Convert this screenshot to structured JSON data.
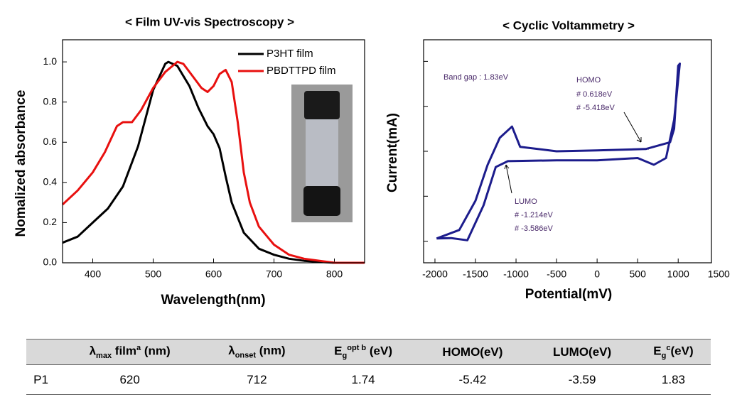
{
  "chart_data": [
    {
      "type": "line",
      "title": "< Film UV-vis Spectroscopy >",
      "x_label": "Wavelength(nm)",
      "y_label": "Nomalized absorbance",
      "xlim": [
        350,
        850
      ],
      "xticks": [
        400,
        500,
        600,
        700,
        800
      ],
      "ylim": [
        0,
        1.11
      ],
      "yticks": [
        {
          "value": 0,
          "label": "0.0"
        },
        0.2,
        0.4,
        0.6,
        0.8,
        {
          "value": 1,
          "label": "1.0"
        }
      ],
      "legend": "upper right",
      "series": [
        {
          "name": "P3HT film",
          "color": "#000000",
          "x": [
            350,
            375,
            400,
            425,
            450,
            475,
            500,
            520,
            525,
            540,
            560,
            575,
            590,
            600,
            610,
            620,
            630,
            650,
            675,
            700,
            725,
            750,
            800,
            850
          ],
          "values": [
            0.1,
            0.13,
            0.2,
            0.27,
            0.38,
            0.58,
            0.86,
            0.99,
            1.0,
            0.98,
            0.88,
            0.77,
            0.68,
            0.64,
            0.57,
            0.43,
            0.3,
            0.15,
            0.07,
            0.04,
            0.02,
            0.01,
            0.0,
            0.0
          ]
        },
        {
          "name": "PBDTTPD film",
          "color": "#e8100f",
          "x": [
            350,
            375,
            400,
            420,
            440,
            450,
            465,
            480,
            500,
            520,
            540,
            550,
            565,
            580,
            590,
            600,
            610,
            620,
            630,
            640,
            650,
            660,
            675,
            700,
            725,
            750,
            800,
            850
          ],
          "values": [
            0.29,
            0.36,
            0.45,
            0.55,
            0.68,
            0.7,
            0.7,
            0.76,
            0.87,
            0.95,
            1.0,
            0.99,
            0.93,
            0.87,
            0.85,
            0.88,
            0.94,
            0.96,
            0.9,
            0.7,
            0.45,
            0.3,
            0.18,
            0.09,
            0.04,
            0.02,
            0.0,
            0.0
          ]
        }
      ]
    },
    {
      "type": "line",
      "title": "< Cyclic Voltammetry >",
      "x_label": "Potential(mV)",
      "y_label": "Current(mA)",
      "xlim": [
        -2140,
        1410
      ],
      "xticks": [
        -2000,
        -1500,
        -1000,
        -500,
        0,
        500,
        1000,
        1500
      ],
      "ylim": [
        -2.48,
        2.48
      ],
      "yticks": [
        -2,
        -1,
        0,
        1,
        2
      ],
      "ytick_labels": false,
      "annotations": [
        "Band gap : 1.83eV",
        "HOMO",
        "# 0.618eV",
        "# -5.418eV",
        "LUMO",
        "# -1.214eV",
        "# -3.586eV"
      ],
      "series": [
        {
          "color": "#1c1c8c",
          "x": [
            -1980,
            -1800,
            -1600,
            -1400,
            -1250,
            -1100,
            -500,
            0,
            500,
            700,
            850,
            950,
            1020,
            1000,
            950,
            900,
            600,
            0,
            -500,
            -950,
            -1050,
            -1200,
            -1350,
            -1500,
            -1700,
            -1980
          ],
          "values": [
            -1.94,
            -1.93,
            -1.98,
            -1.2,
            -0.35,
            -0.22,
            -0.2,
            -0.2,
            -0.15,
            -0.3,
            -0.15,
            0.7,
            1.95,
            1.9,
            0.5,
            0.2,
            0.05,
            0.02,
            0.0,
            0.1,
            0.55,
            0.3,
            -0.3,
            -1.1,
            -1.75,
            -1.94
          ]
        }
      ]
    }
  ],
  "table": {
    "header": [
      [
        {
          "t": "λ"
        },
        {
          "t": "max",
          "s": "sub"
        },
        {
          "t": " film"
        },
        {
          "t": "a",
          "s": "sup"
        },
        {
          "t": " (nm)"
        }
      ],
      [
        {
          "t": "λ"
        },
        {
          "t": "onset",
          "s": "sub"
        },
        {
          "t": " (nm)"
        }
      ],
      [
        {
          "t": "E"
        },
        {
          "t": "g",
          "s": "sub"
        },
        {
          "t": "opt b",
          "s": "sup"
        },
        {
          "t": " (eV)"
        }
      ],
      [
        {
          "t": "HOMO(eV)"
        }
      ],
      [
        {
          "t": "LUMO(eV)"
        }
      ],
      [
        {
          "t": "E"
        },
        {
          "t": "g",
          "s": "sub"
        },
        {
          "t": "c",
          "s": "sup"
        },
        {
          "t": "(eV)"
        }
      ]
    ],
    "rows": [
      [
        "P1",
        "620",
        "712",
        "1.74",
        "-5.42",
        "-3.59",
        "1.83"
      ]
    ]
  }
}
